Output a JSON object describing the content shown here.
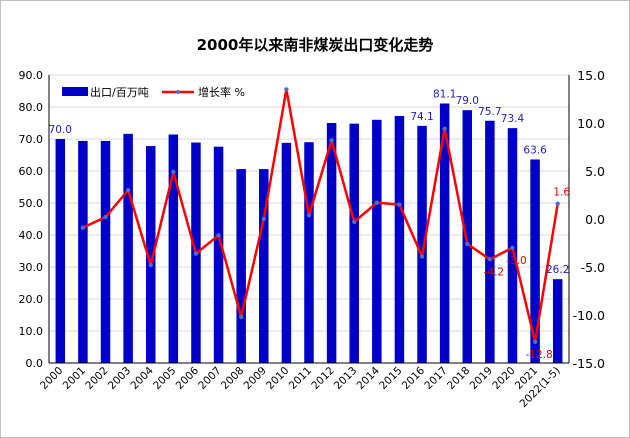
{
  "chart_data": {
    "type": "bar",
    "title": "2000年以来南非煤炭出口变化走势",
    "categories": [
      "2000",
      "2001",
      "2002",
      "2003",
      "2004",
      "2005",
      "2006",
      "2007",
      "2008",
      "2009",
      "2010",
      "2011",
      "2012",
      "2013",
      "2014",
      "2015",
      "2016",
      "2017",
      "2018",
      "2019",
      "2020",
      "2021",
      "2022(1-5)"
    ],
    "series": [
      {
        "name": "出口/百万吨",
        "kind": "bar",
        "axis": "left",
        "color": "#0000c8",
        "values": [
          70.0,
          69.4,
          69.4,
          71.6,
          67.8,
          71.4,
          68.9,
          67.6,
          60.6,
          60.6,
          68.8,
          69.0,
          75.0,
          74.8,
          76.0,
          77.2,
          74.1,
          81.1,
          79.0,
          75.7,
          73.4,
          63.6,
          26.2
        ],
        "labels": {
          "0": "70.0",
          "16": "74.1",
          "17": "81.1",
          "18": "79.0",
          "19": "75.7",
          "20": "73.4",
          "21": "63.6",
          "22": "26.2"
        }
      },
      {
        "name": "增长率 %",
        "kind": "line",
        "axis": "right",
        "color": "#ff0000",
        "values": [
          null,
          -0.9,
          0.2,
          3.0,
          -4.8,
          4.9,
          -3.6,
          -1.7,
          -10.2,
          0.0,
          13.5,
          0.4,
          8.2,
          -0.3,
          1.7,
          1.5,
          -3.9,
          9.4,
          -2.6,
          -4.2,
          -3.0,
          -12.8,
          1.6
        ],
        "labels": {
          "19": "-4.2",
          "20": "-3.0",
          "21": "-12.8",
          "22": "1.6"
        }
      }
    ],
    "ylim_left": [
      0,
      90
    ],
    "yticks_left": [
      "0.0",
      "10.0",
      "20.0",
      "30.0",
      "40.0",
      "50.0",
      "60.0",
      "70.0",
      "80.0",
      "90.0"
    ],
    "ylim_right": [
      -15,
      15
    ],
    "yticks_right": [
      "-15.0",
      "-10.0",
      "-5.0",
      "0.0",
      "5.0",
      "10.0",
      "15.0"
    ],
    "grid": true,
    "legend_position": "top-left"
  }
}
